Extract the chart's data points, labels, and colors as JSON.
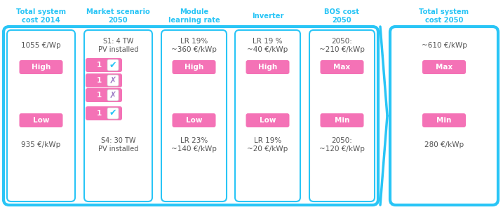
{
  "headers": [
    "Total system\ncost 2014",
    "Market scenario\n2050",
    "Module\nlearning rate",
    "Inverter",
    "BOS cost\n2050",
    "Total system\ncost 2050"
  ],
  "pink": "#f472b6",
  "blue_border": "#29c5f6",
  "blue_border_thick": "#00b4e0",
  "header_color": "#29c5f6",
  "text_color": "#555555",
  "col1": {
    "top_text": "1055 €/Wp",
    "high_btn": "High",
    "low_btn": "Low",
    "bot_text": "935 €/kWp"
  },
  "col2": {
    "top_text": "S1: 4 TW\nPV installed",
    "marks": [
      "✔",
      "✗",
      "✗",
      "✔"
    ],
    "mark_colors": [
      "#29c5f6",
      "#9c7bc4",
      "#9c7bc4",
      "#29c5f6"
    ],
    "bot_text": "S4: 30 TW\nPV installed"
  },
  "col3": {
    "top_text": "LR 19%\n~360 €/kWp",
    "high_btn": "High",
    "low_btn": "Low",
    "bot_text": "LR 23%\n~140 €/kWp"
  },
  "col4": {
    "top_text": "LR 19 %\n~40 €/kWp",
    "high_btn": "High",
    "low_btn": "Low",
    "bot_text": "LR 19%\n~20 €/kWp"
  },
  "col5": {
    "top_text": "2050:\n~210 €/kWp",
    "high_btn": "Max",
    "low_btn": "Min",
    "bot_text": "2050:\n~120 €/kWp"
  },
  "col6": {
    "top_text": "~610 €/kWp",
    "high_btn": "Max",
    "low_btn": "Min",
    "bot_text": "280 €/kWp"
  }
}
